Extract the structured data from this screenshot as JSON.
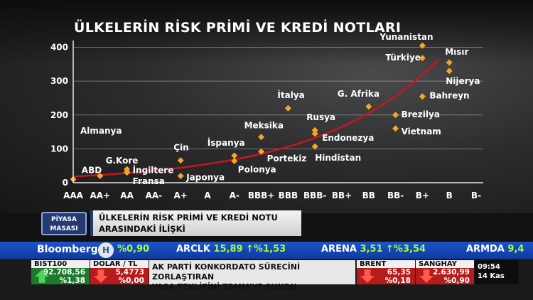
{
  "chart_data": {
    "type": "scatter",
    "title": "ÜLKELERİN RİSK PRİMİ VE KREDİ NOTLARI",
    "categories": [
      "AAA",
      "AA+",
      "AA",
      "AA-",
      "A+",
      "A",
      "A-",
      "BBB+",
      "BBB",
      "BBB-",
      "BB+",
      "BB",
      "BB-",
      "B+",
      "B",
      "B-"
    ],
    "y_ticks": [
      "0",
      "100",
      "200",
      "300",
      "400"
    ],
    "ylim": [
      0,
      420
    ],
    "grid": true,
    "marker_color": "#f5a623",
    "trend_color": "#c8161d",
    "points": [
      {
        "label": "Almanya",
        "x": "AAA",
        "y": 10
      },
      {
        "label": "ABD",
        "x": "AA+",
        "y": 20
      },
      {
        "label": "G.Kore",
        "x": "AA",
        "y": 40
      },
      {
        "label": "İngiltere",
        "x": "AA",
        "y": 30
      },
      {
        "label": "Fransa",
        "x": "AA",
        "y": 32
      },
      {
        "label": "Çin",
        "x": "A+",
        "y": 66
      },
      {
        "label": "Japonya",
        "x": "A+",
        "y": 20
      },
      {
        "label": "İspanya",
        "x": "A-",
        "y": 80
      },
      {
        "label": "Polonya",
        "x": "A-",
        "y": 64
      },
      {
        "label": "Meksika",
        "x": "BBB+",
        "y": 135
      },
      {
        "label": "Portekiz",
        "x": "BBB+",
        "y": 92
      },
      {
        "label": "İtalya",
        "x": "BBB",
        "y": 220
      },
      {
        "label": "Rusya",
        "x": "BBB-",
        "y": 155
      },
      {
        "label": "Endonezya",
        "x": "BBB-",
        "y": 145
      },
      {
        "label": "Hindistan",
        "x": "BBB-",
        "y": 107
      },
      {
        "label": "G. Afrika",
        "x": "BB",
        "y": 225
      },
      {
        "label": "Brezilya",
        "x": "BB-",
        "y": 200
      },
      {
        "label": "Vietnam",
        "x": "BB-",
        "y": 160
      },
      {
        "label": "Yunanistan",
        "x": "B+",
        "y": 405
      },
      {
        "label": "Türkiye",
        "x": "B+",
        "y": 368
      },
      {
        "label": "Bahreyn",
        "x": "B+",
        "y": 255
      },
      {
        "label": "Mısır",
        "x": "B",
        "y": 355
      },
      {
        "label": "Nijerya",
        "x": "B",
        "y": 330
      }
    ]
  },
  "lower_third": {
    "badge": "PİYASA MASASI",
    "headline_line1": "ÜLKELERİN RİSK PRİMİ VE KREDİ NOTU",
    "headline_line2": "ARASINDAKİ İLİŞKİ"
  },
  "ticker": {
    "brand": "Bloomberg",
    "logo_letter": "H",
    "items": [
      {
        "name": "",
        "value": "%0,90"
      },
      {
        "name": "ARCLK",
        "value": "15,89 ↑%1,53"
      },
      {
        "name": "ARENA",
        "value": "3,51 ↑%3,54"
      },
      {
        "name": "ARMDA",
        "value": "9,4"
      }
    ]
  },
  "bottom": {
    "bist": {
      "name": "BIST100",
      "value": "92.708,56",
      "change": "%1,38"
    },
    "dolar": {
      "name": "DOLAR / TL",
      "value": "5,4773",
      "change": "%0,00"
    },
    "news_line1": "AK PARTİ KONKORDATO SÜRECİNİ ZORLAŞTIRAN",
    "news_line2": "YASA TEKLİFİNİ TBMM'YE SUNDU",
    "brent": {
      "name": "BRENT",
      "value": "65,35",
      "change": "%0,18"
    },
    "sanghay": {
      "name": "SANGHAY",
      "value": "2.630,99",
      "change": "%0,90"
    },
    "time": "09:54",
    "date": "14 Kas"
  }
}
